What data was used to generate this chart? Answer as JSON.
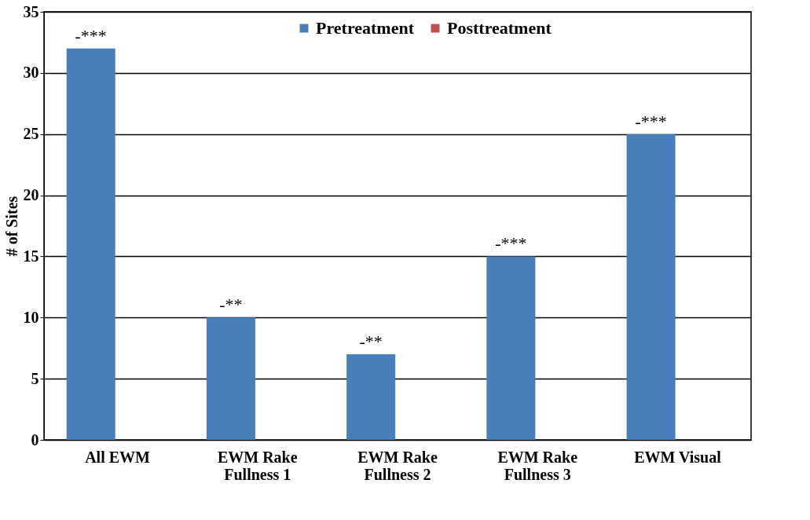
{
  "chart_data": {
    "type": "bar",
    "ylabel": "# of Sites",
    "categories": [
      "All EWM",
      "EWM Rake Fullness 1",
      "EWM Rake Fullness 2",
      "EWM Rake Fullness 3",
      "EWM Visual"
    ],
    "series": [
      {
        "name": "Pretreatment",
        "color": "#4a7ebb",
        "values": [
          32,
          10,
          7,
          15,
          25
        ]
      },
      {
        "name": "Posttreatment",
        "color": "#c0504d",
        "values": [
          0,
          0,
          0,
          0,
          0
        ]
      }
    ],
    "ylim": [
      0,
      35
    ],
    "yticks": [
      0,
      5,
      10,
      15,
      20,
      25,
      30,
      35
    ],
    "grid": "y",
    "legend": "top",
    "annotations": [
      {
        "text": "-***",
        "x": "All EWM",
        "y": 32
      },
      {
        "text": "-**",
        "x": "EWM Rake Fullness 1",
        "y": 10
      },
      {
        "text": "-**",
        "x": "EWM Rake Fullness 2",
        "y": 7
      },
      {
        "text": "-***",
        "x": "EWM Rake Fullness 3",
        "y": 15
      },
      {
        "text": "-***",
        "x": "EWM Visual",
        "y": 25
      }
    ]
  }
}
